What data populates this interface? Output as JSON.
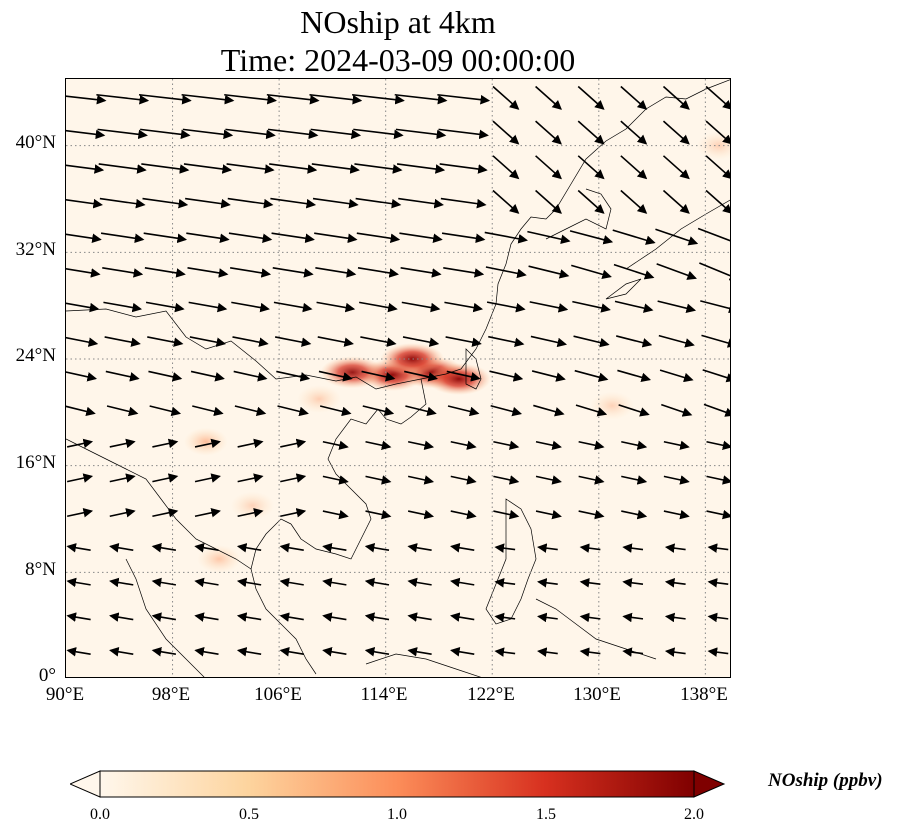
{
  "title_line1": "NOship at 4km",
  "title_line2": "Time: 2024-03-09 00:00:00",
  "map": {
    "lon_range": [
      90,
      140
    ],
    "lat_range": [
      0,
      45
    ],
    "lon_ticks": [
      "90°E",
      "98°E",
      "106°E",
      "114°E",
      "122°E",
      "130°E",
      "138°E"
    ],
    "lat_ticks": [
      "0°",
      "8°N",
      "16°N",
      "24°N",
      "32°N",
      "40°N"
    ],
    "gridlines": true,
    "field": "NOship",
    "plumes": [
      {
        "lon": 117.5,
        "lat": 23.0,
        "value": 1.9
      },
      {
        "lon": 114.5,
        "lat": 22.8,
        "value": 1.8
      },
      {
        "lon": 119.5,
        "lat": 22.5,
        "value": 1.6
      },
      {
        "lon": 111.5,
        "lat": 23.0,
        "value": 1.2
      },
      {
        "lon": 116.0,
        "lat": 24.0,
        "value": 1.4
      },
      {
        "lon": 100.5,
        "lat": 17.8,
        "value": 0.9
      },
      {
        "lon": 101.5,
        "lat": 9.0,
        "value": 0.6
      },
      {
        "lon": 131.0,
        "lat": 20.5,
        "value": 0.3
      },
      {
        "lon": 139.0,
        "lat": 40.0,
        "value": 0.35
      },
      {
        "lon": 104.0,
        "lat": 13.0,
        "value": 0.3
      },
      {
        "lon": 109.0,
        "lat": 21.0,
        "value": 0.4
      }
    ],
    "wind_vectors_description": "westerly flow aloft; anticyclonic turning over Indochina and South China Sea"
  },
  "colorbar": {
    "label": "NOship (ppbv)",
    "min": 0.0,
    "max": 2.0,
    "ticks": [
      "0.0",
      "0.5",
      "1.0",
      "1.5",
      "2.0"
    ],
    "colormap": "OrRd",
    "colors": [
      "#fff7ec",
      "#fdd49e",
      "#fc8d59",
      "#d7301f",
      "#7f0000"
    ],
    "extend": "both"
  }
}
